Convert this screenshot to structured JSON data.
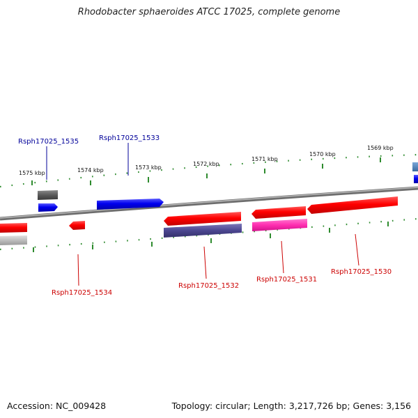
{
  "title": "Rhodobacter sphaeroides ATCC 17025, complete genome",
  "footer": {
    "accession": "Accession: NC_009428",
    "summary": "Topology: circular; Length: 3,217,726 bp; Genes: 3,156"
  },
  "colors": {
    "backbone": "#8a8a8a",
    "tick": "#2e8b2e",
    "label_forward": "#000099",
    "label_reverse": "#cc0000"
  },
  "scale_ticks": [
    "1575 kbp",
    "1574 kbp",
    "1573 kbp",
    "1572 kbp",
    "1571 kbp",
    "1570 kbp",
    "1569 kbp"
  ],
  "gene_labels": {
    "forward": [
      "Rsph17025_1535",
      "Rsph17025_1533"
    ],
    "reverse": [
      "Rsph17025_1534",
      "Rsph17025_1532",
      "Rsph17025_1531",
      "Rsph17025_1530"
    ]
  }
}
